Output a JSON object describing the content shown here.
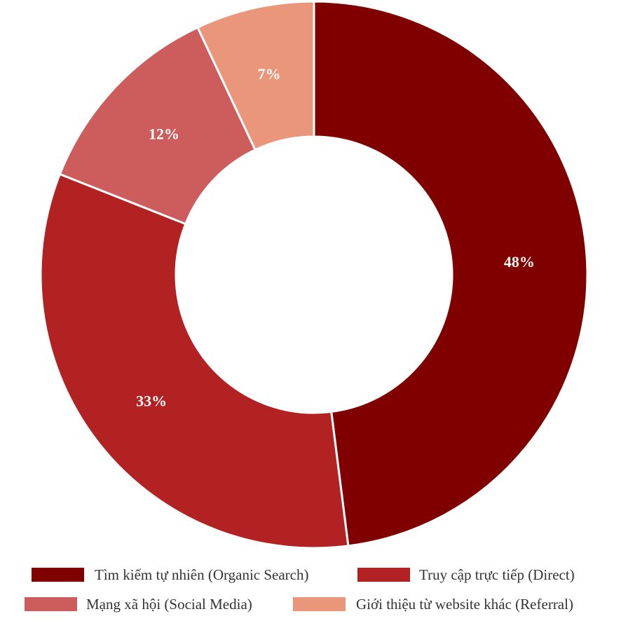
{
  "chart_data": {
    "type": "pie",
    "variant": "donut",
    "title": "",
    "legend_position": "bottom",
    "categories": [
      "Tìm kiếm tự nhiên (Organic Search)",
      "Truy cập trực tiếp (Direct)",
      "Mạng xã hội (Social Media)",
      "Giới thiệu từ website khác (Referral)"
    ],
    "values": [
      48,
      33,
      12,
      7
    ],
    "value_labels": [
      "48%",
      "33%",
      "12%",
      "7%"
    ],
    "colors": [
      "#800000",
      "#b22222",
      "#cd5c5c",
      "#e9967a"
    ],
    "legend_entries": [
      "Tìm kiếm tự nhiên (Organic Search)",
      "Truy cập trực tiếp (Direct)",
      "Mạng xã hội (Social Media)",
      "Giới thiệu từ website khác (Referral)"
    ]
  }
}
